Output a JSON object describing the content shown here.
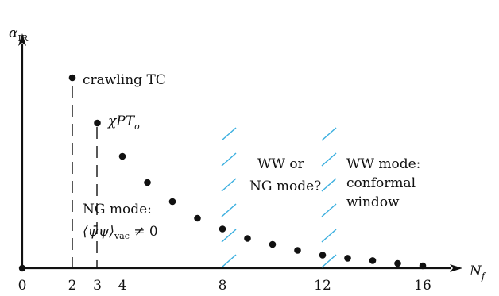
{
  "colors": {
    "ink": "#111111",
    "hatch": "#3db0e0"
  },
  "axes": {
    "y_label_main": "α",
    "y_label_sub": "IR",
    "x_label_main": "N",
    "x_label_sub": "f"
  },
  "x_ticks": [
    {
      "value": 0,
      "label": "0"
    },
    {
      "value": 2,
      "label": "2"
    },
    {
      "value": 3,
      "label": "3"
    },
    {
      "value": 4,
      "label": "4"
    },
    {
      "value": 8,
      "label": "8"
    },
    {
      "value": 12,
      "label": "12"
    },
    {
      "value": 16,
      "label": "16"
    }
  ],
  "points": [
    {
      "x": 2,
      "y": 0.8
    },
    {
      "x": 3,
      "y": 0.61
    },
    {
      "x": 4,
      "y": 0.47
    },
    {
      "x": 5,
      "y": 0.36
    },
    {
      "x": 6,
      "y": 0.28
    },
    {
      "x": 7,
      "y": 0.21
    },
    {
      "x": 8,
      "y": 0.165
    },
    {
      "x": 9,
      "y": 0.125
    },
    {
      "x": 10,
      "y": 0.1
    },
    {
      "x": 11,
      "y": 0.075
    },
    {
      "x": 12,
      "y": 0.055
    },
    {
      "x": 13,
      "y": 0.042
    },
    {
      "x": 14,
      "y": 0.032
    },
    {
      "x": 15,
      "y": 0.02
    },
    {
      "x": 16,
      "y": 0.01
    }
  ],
  "annotations": {
    "crawling": "crawling TC",
    "chi_main": "χPT",
    "chi_sub": "σ",
    "ng_mode_title": "NG mode:",
    "condensate_main": "⟨ψ̄ψ⟩",
    "condensate_sub": "vac",
    "condensate_rel": " ≠ 0",
    "ww_or_line1": "WW or",
    "ww_or_line2": "NG mode?",
    "ww_mode_line1": "WW mode:",
    "ww_mode_line2": "conformal",
    "ww_mode_line3": "window"
  }
}
